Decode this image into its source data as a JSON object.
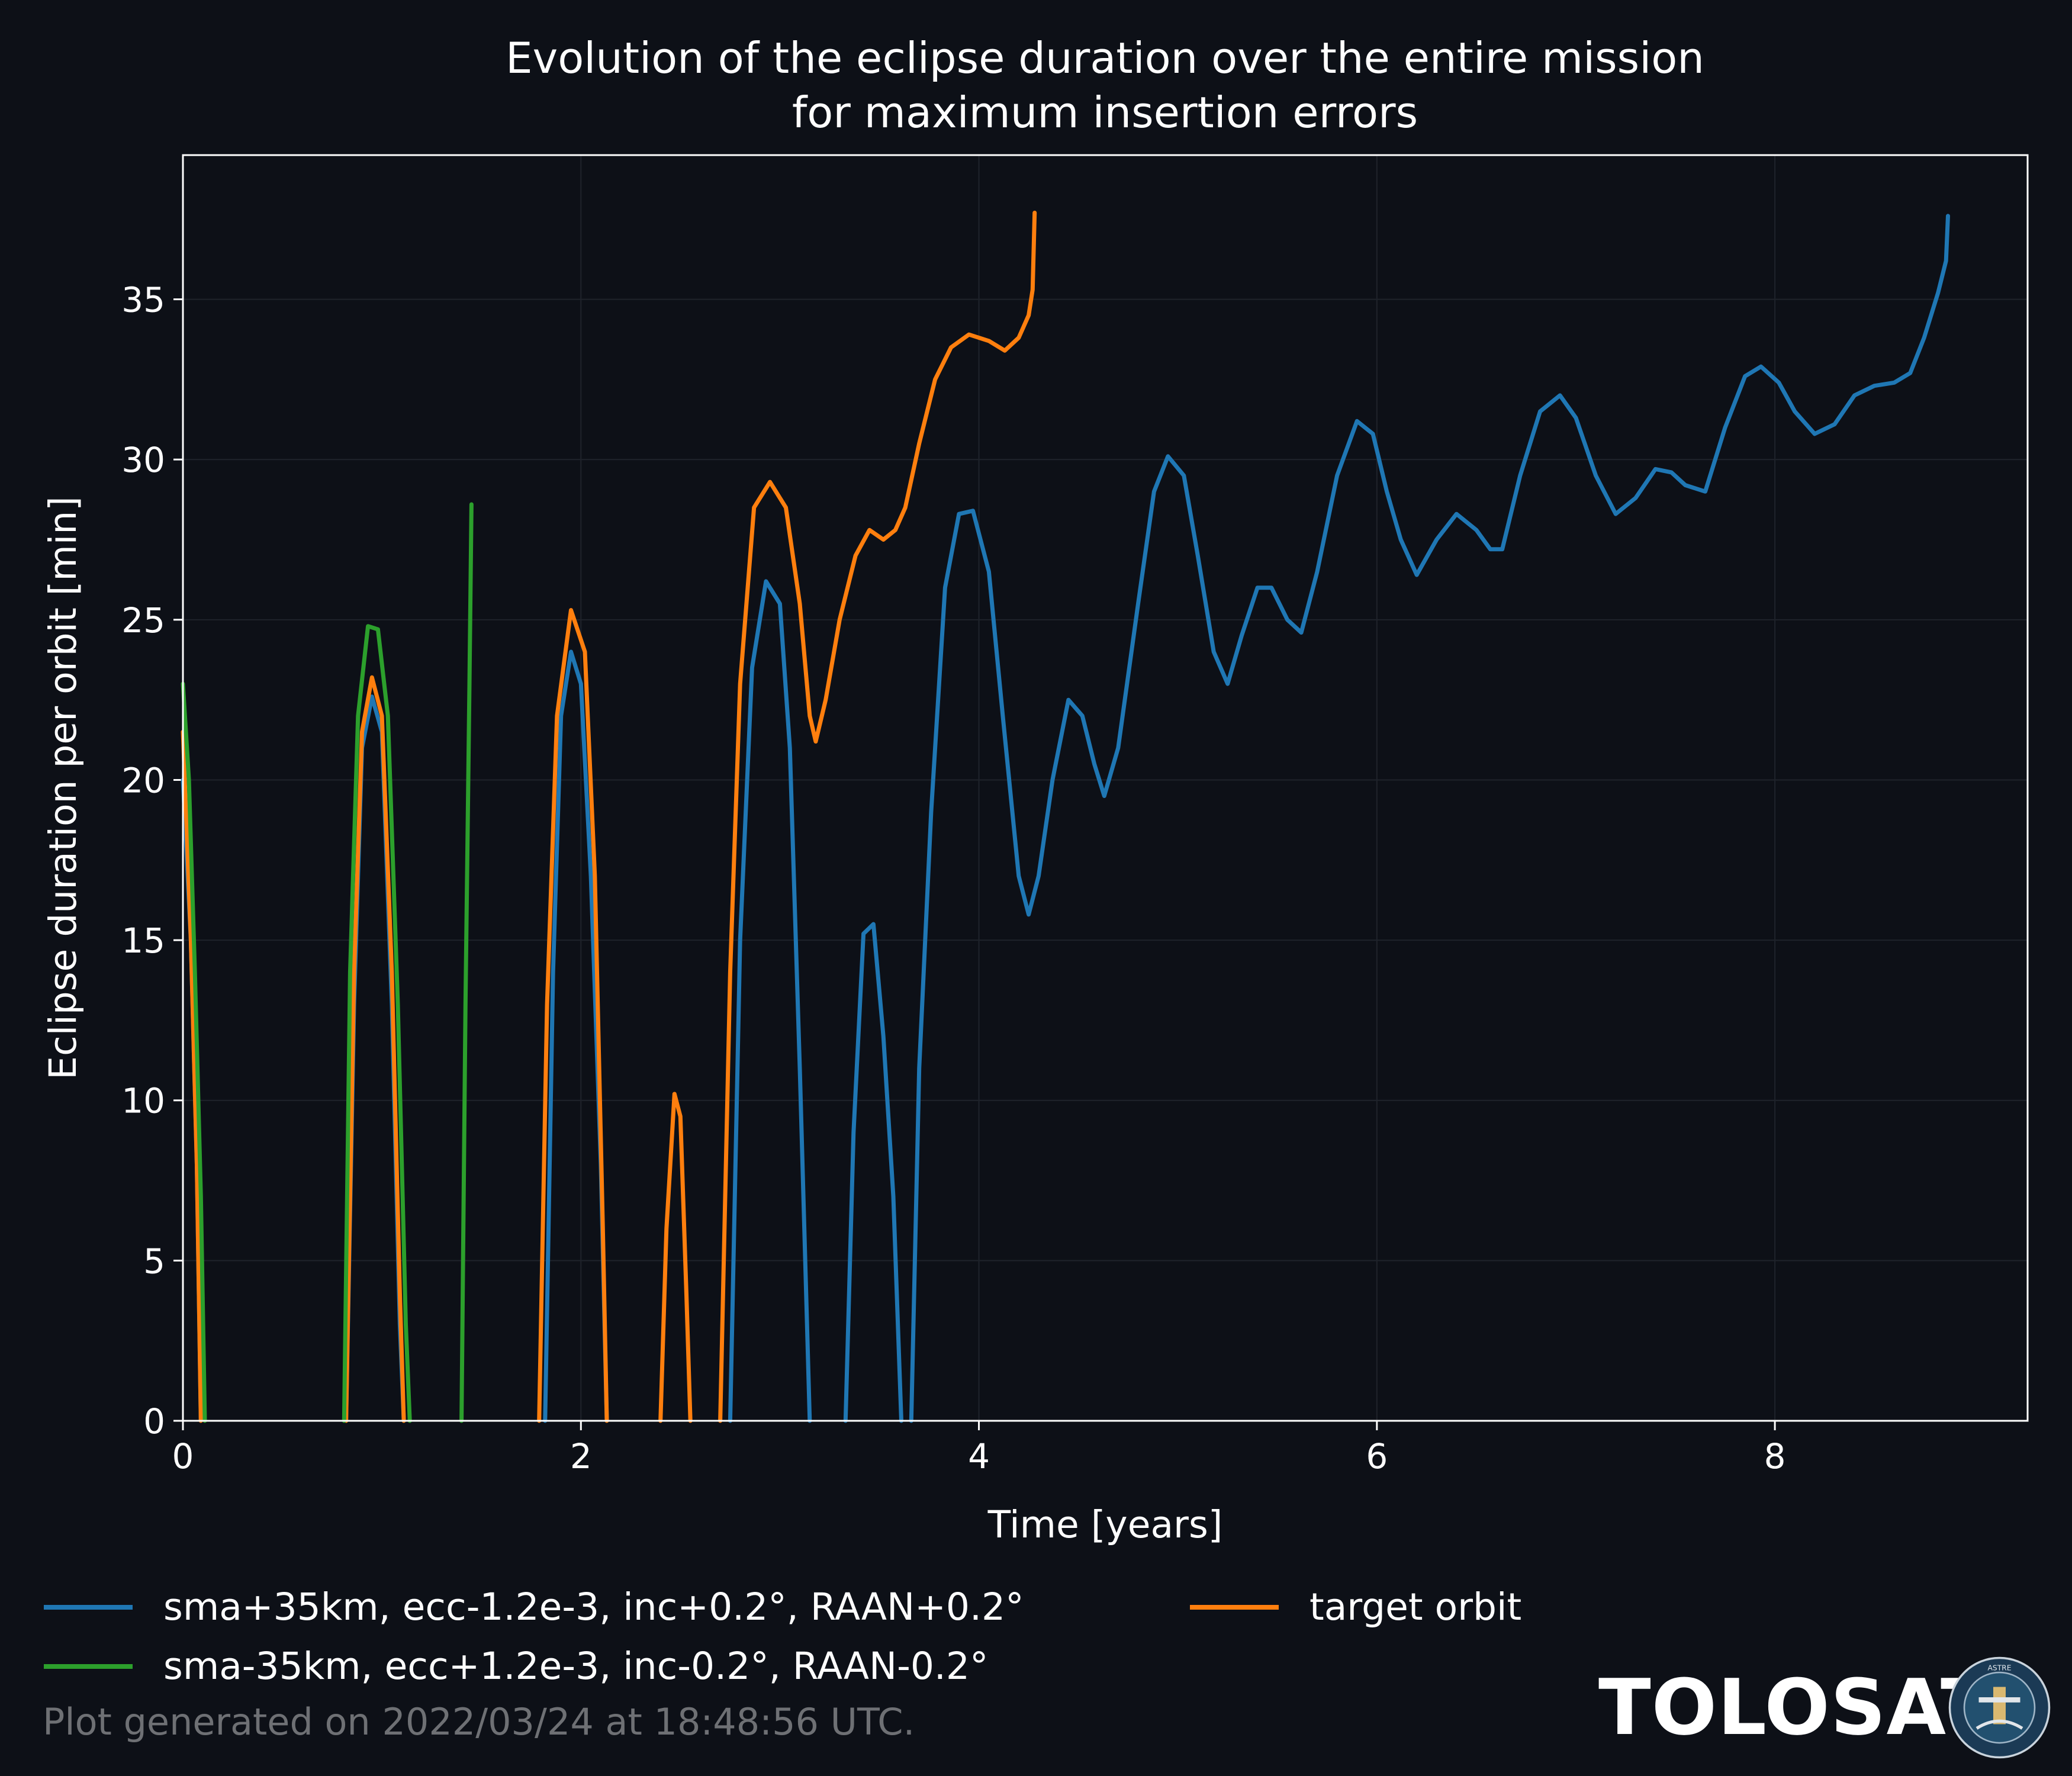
{
  "colors": {
    "background": "#0d1017",
    "blue": "#1f77b4",
    "orange": "#ff7f0e",
    "green": "#2ca02c",
    "grid": "#1f232b",
    "footer": "#6e7074"
  },
  "chart_data": {
    "type": "line",
    "title": "Evolution of the eclipse duration over the entire mission",
    "subtitle": "for maximum insertion errors",
    "xlabel": "Time [years]",
    "ylabel": "Eclipse duration per orbit [min]",
    "xlim": [
      0,
      9.27
    ],
    "ylim": [
      0,
      39.5
    ],
    "xticks": [
      0,
      2,
      4,
      6,
      8
    ],
    "yticks": [
      0,
      5,
      10,
      15,
      20,
      25,
      30,
      35
    ],
    "grid": true,
    "legend_position": "bottom-left",
    "series": [
      {
        "name": "sma+35km, ecc-1.2e-3, inc+0.2°, RAAN+0.2°",
        "color": "#1f77b4",
        "segments": [
          [
            [
              0,
              20
            ],
            [
              0.04,
              15
            ],
            [
              0.07,
              8
            ],
            [
              0.09,
              0
            ]
          ],
          [
            [
              0.82,
              0
            ],
            [
              0.86,
              13
            ],
            [
              0.9,
              21
            ],
            [
              0.95,
              22.6
            ],
            [
              1.0,
              21.5
            ],
            [
              1.05,
              13
            ],
            [
              1.09,
              3
            ],
            [
              1.11,
              0
            ]
          ],
          [
            [
              1.82,
              0
            ],
            [
              1.86,
              14
            ],
            [
              1.9,
              22
            ],
            [
              1.95,
              24
            ],
            [
              2.0,
              23
            ],
            [
              2.05,
              17
            ],
            [
              2.1,
              8
            ],
            [
              2.13,
              0
            ]
          ],
          [
            [
              2.75,
              0
            ],
            [
              2.8,
              15
            ],
            [
              2.86,
              23.5
            ],
            [
              2.93,
              26.2
            ],
            [
              3.0,
              25.5
            ],
            [
              3.05,
              21
            ],
            [
              3.1,
              11
            ],
            [
              3.15,
              0
            ]
          ],
          [
            [
              3.33,
              0
            ],
            [
              3.37,
              9
            ],
            [
              3.42,
              15.2
            ],
            [
              3.47,
              15.5
            ],
            [
              3.52,
              12
            ],
            [
              3.57,
              7
            ],
            [
              3.61,
              0
            ]
          ],
          [
            [
              3.66,
              0
            ],
            [
              3.7,
              11
            ],
            [
              3.76,
              19
            ],
            [
              3.83,
              26
            ],
            [
              3.9,
              28.3
            ],
            [
              3.97,
              28.4
            ],
            [
              4.05,
              26.5
            ],
            [
              4.12,
              22
            ],
            [
              4.2,
              17
            ],
            [
              4.25,
              15.8
            ],
            [
              4.3,
              17
            ],
            [
              4.37,
              20
            ],
            [
              4.45,
              22.5
            ],
            [
              4.52,
              22
            ],
            [
              4.58,
              20.5
            ],
            [
              4.63,
              19.5
            ],
            [
              4.7,
              21
            ],
            [
              4.8,
              25.5
            ],
            [
              4.88,
              29
            ],
            [
              4.95,
              30.1
            ],
            [
              5.03,
              29.5
            ],
            [
              5.1,
              27
            ],
            [
              5.18,
              24
            ],
            [
              5.25,
              23
            ],
            [
              5.32,
              24.5
            ],
            [
              5.4,
              26
            ],
            [
              5.47,
              26
            ],
            [
              5.55,
              25
            ],
            [
              5.62,
              24.6
            ],
            [
              5.7,
              26.5
            ],
            [
              5.8,
              29.5
            ],
            [
              5.9,
              31.2
            ],
            [
              5.98,
              30.8
            ],
            [
              6.05,
              29
            ],
            [
              6.12,
              27.5
            ],
            [
              6.2,
              26.4
            ],
            [
              6.3,
              27.5
            ],
            [
              6.4,
              28.3
            ],
            [
              6.5,
              27.8
            ],
            [
              6.57,
              27.2
            ],
            [
              6.63,
              27.2
            ],
            [
              6.72,
              29.5
            ],
            [
              6.82,
              31.5
            ],
            [
              6.92,
              32
            ],
            [
              7.0,
              31.3
            ],
            [
              7.1,
              29.5
            ],
            [
              7.2,
              28.3
            ],
            [
              7.3,
              28.8
            ],
            [
              7.4,
              29.7
            ],
            [
              7.48,
              29.6
            ],
            [
              7.55,
              29.2
            ],
            [
              7.65,
              29
            ],
            [
              7.75,
              31
            ],
            [
              7.85,
              32.6
            ],
            [
              7.93,
              32.9
            ],
            [
              8.02,
              32.4
            ],
            [
              8.1,
              31.5
            ],
            [
              8.2,
              30.8
            ],
            [
              8.3,
              31.1
            ],
            [
              8.4,
              32
            ],
            [
              8.5,
              32.3
            ],
            [
              8.6,
              32.4
            ],
            [
              8.68,
              32.7
            ],
            [
              8.75,
              33.8
            ],
            [
              8.82,
              35.2
            ],
            [
              8.86,
              36.2
            ],
            [
              8.87,
              37.6
            ]
          ]
        ]
      },
      {
        "name": "target orbit",
        "color": "#ff7f0e",
        "segments": [
          [
            [
              0,
              21.5
            ],
            [
              0.04,
              15
            ],
            [
              0.07,
              8
            ],
            [
              0.09,
              0
            ]
          ],
          [
            [
              0.82,
              0
            ],
            [
              0.86,
              14
            ],
            [
              0.9,
              21.5
            ],
            [
              0.95,
              23.2
            ],
            [
              1.0,
              22
            ],
            [
              1.05,
              14
            ],
            [
              1.09,
              4
            ],
            [
              1.11,
              0
            ]
          ],
          [
            [
              1.79,
              0
            ],
            [
              1.83,
              13
            ],
            [
              1.88,
              22
            ],
            [
              1.95,
              25.3
            ],
            [
              2.02,
              24
            ],
            [
              2.07,
              17
            ],
            [
              2.11,
              6
            ],
            [
              2.13,
              0
            ]
          ],
          [
            [
              2.4,
              0
            ],
            [
              2.43,
              6
            ],
            [
              2.47,
              10.2
            ],
            [
              2.5,
              9.5
            ],
            [
              2.53,
              4
            ],
            [
              2.55,
              0
            ]
          ],
          [
            [
              2.7,
              0
            ],
            [
              2.75,
              14
            ],
            [
              2.8,
              23
            ],
            [
              2.87,
              28.5
            ],
            [
              2.95,
              29.3
            ],
            [
              3.03,
              28.5
            ],
            [
              3.1,
              25.5
            ],
            [
              3.15,
              22
            ],
            [
              3.18,
              21.2
            ],
            [
              3.23,
              22.5
            ],
            [
              3.3,
              25
            ],
            [
              3.38,
              27
            ],
            [
              3.45,
              27.8
            ],
            [
              3.52,
              27.5
            ],
            [
              3.58,
              27.8
            ],
            [
              3.63,
              28.5
            ],
            [
              3.7,
              30.5
            ],
            [
              3.78,
              32.5
            ],
            [
              3.86,
              33.5
            ],
            [
              3.95,
              33.9
            ],
            [
              4.05,
              33.7
            ],
            [
              4.13,
              33.4
            ],
            [
              4.2,
              33.8
            ],
            [
              4.25,
              34.5
            ],
            [
              4.27,
              35.3
            ],
            [
              4.28,
              37.7
            ]
          ]
        ]
      },
      {
        "name": "sma-35km, ecc+1.2e-3, inc-0.2°, RAAN-0.2°",
        "color": "#2ca02c",
        "segments": [
          [
            [
              0,
              23
            ],
            [
              0.03,
              20
            ],
            [
              0.06,
              14
            ],
            [
              0.09,
              7
            ],
            [
              0.11,
              0
            ]
          ],
          [
            [
              0.81,
              0
            ],
            [
              0.84,
              14
            ],
            [
              0.88,
              22
            ],
            [
              0.93,
              24.8
            ],
            [
              0.98,
              24.7
            ],
            [
              1.03,
              22
            ],
            [
              1.08,
              13
            ],
            [
              1.12,
              3
            ],
            [
              1.14,
              0
            ]
          ],
          [
            [
              1.4,
              0
            ],
            [
              1.42,
              13
            ],
            [
              1.44,
              23
            ],
            [
              1.45,
              28.6
            ]
          ]
        ]
      }
    ]
  },
  "legend": {
    "blue_label": "sma+35km, ecc-1.2e-3, inc+0.2°, RAAN+0.2°",
    "orange_label": "target orbit",
    "green_label": "sma-35km, ecc+1.2e-3, inc-0.2°, RAAN-0.2°"
  },
  "footer": {
    "generated_text": "Plot generated on 2022/03/24 at 18:48:56 UTC."
  },
  "brand": {
    "name": "TOLOSAT",
    "logo_text": "ASTRE · CC SUPAERO · TOLOSAT"
  }
}
